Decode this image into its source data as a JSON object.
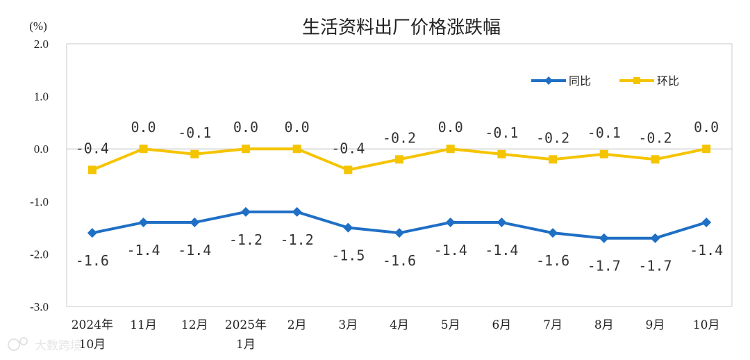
{
  "chart_data": {
    "type": "line",
    "title": "生活资料出厂价格涨跌幅",
    "ylabel": "(%)",
    "ylim": [
      -3.0,
      2.0
    ],
    "yticks": [
      "2.0",
      "1.0",
      "0.0",
      "-1.0",
      "-2.0",
      "-3.0"
    ],
    "ytick_values": [
      2.0,
      1.0,
      0.0,
      -1.0,
      -2.0,
      -3.0
    ],
    "categories": [
      [
        "2024年",
        "10月"
      ],
      [
        "11月"
      ],
      [
        "12月"
      ],
      [
        "2025年",
        "1月"
      ],
      [
        "2月"
      ],
      [
        "3月"
      ],
      [
        "4月"
      ],
      [
        "5月"
      ],
      [
        "6月"
      ],
      [
        "7月"
      ],
      [
        "8月"
      ],
      [
        "9月"
      ],
      [
        "10月"
      ]
    ],
    "series": [
      {
        "name": "同比",
        "color": "#1F6FC5",
        "marker": "diamond",
        "values": [
          -1.6,
          -1.4,
          -1.4,
          -1.2,
          -1.2,
          -1.5,
          -1.6,
          -1.4,
          -1.4,
          -1.6,
          -1.7,
          -1.7,
          -1.4
        ],
        "labels": [
          "-1.6",
          "-1.4",
          "-1.4",
          "-1.2",
          "-1.2",
          "-1.5",
          "-1.6",
          "-1.4",
          "-1.4",
          "-1.6",
          "-1.7",
          "-1.7",
          "-1.4"
        ]
      },
      {
        "name": "环比",
        "color": "#F5C400",
        "marker": "square",
        "values": [
          -0.4,
          0.0,
          -0.1,
          0.0,
          0.0,
          -0.4,
          -0.2,
          0.0,
          -0.1,
          -0.2,
          -0.1,
          -0.2,
          0.0
        ],
        "labels": [
          "-0.4",
          "0.0",
          "-0.1",
          "0.0",
          "0.0",
          "-0.4",
          "-0.2",
          "0.0",
          "-0.1",
          "-0.2",
          "-0.1",
          "-0.2",
          "0.0"
        ]
      }
    ],
    "legend_position": "top-right",
    "grid": false,
    "zero_line": true
  },
  "watermark": {
    "text": "大数跨境",
    "icon": "logo-mark-icon"
  }
}
